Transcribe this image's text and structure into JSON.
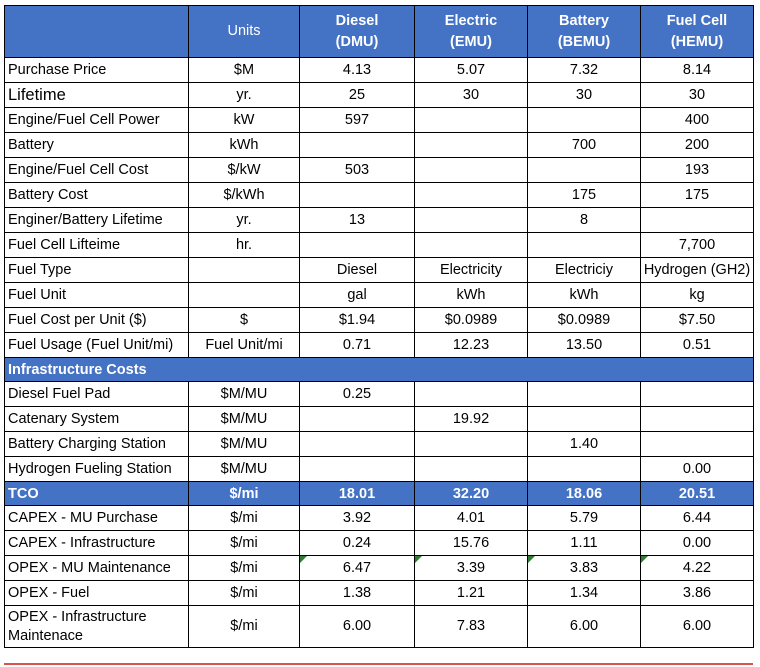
{
  "header": {
    "blank": "",
    "units": "Units",
    "cols": [
      {
        "line1": "Diesel",
        "line2": "(DMU)"
      },
      {
        "line1": "Electric",
        "line2": "(EMU)"
      },
      {
        "line1": "Battery",
        "line2": "(BEMU)"
      },
      {
        "line1": "Fuel Cell",
        "line2": "(HEMU)"
      }
    ]
  },
  "rows": [
    {
      "label": "Purchase Price",
      "unit": "$M",
      "v": [
        "4.13",
        "5.07",
        "7.32",
        "8.14"
      ]
    },
    {
      "label": "Lifetime",
      "unit": "yr.",
      "v": [
        "25",
        "30",
        "30",
        "30"
      ]
    },
    {
      "label": "Engine/Fuel Cell Power",
      "unit": "kW",
      "v": [
        "597",
        "",
        "",
        "400"
      ]
    },
    {
      "label": "Battery",
      "unit": "kWh",
      "v": [
        "",
        "",
        "700",
        "200"
      ]
    },
    {
      "label": "Engine/Fuel Cell Cost",
      "unit": "$/kW",
      "v": [
        "503",
        "",
        "",
        "193"
      ]
    },
    {
      "label": "Battery Cost",
      "unit": "$/kWh",
      "v": [
        "",
        "",
        "175",
        "175"
      ]
    },
    {
      "label": "Enginer/Battery Lifetime",
      "unit": "yr.",
      "v": [
        "13",
        "",
        "8",
        ""
      ]
    },
    {
      "label": "Fuel Cell Lifteime",
      "unit": "hr.",
      "v": [
        "",
        "",
        "",
        "7,700"
      ]
    },
    {
      "label": "Fuel Type",
      "unit": "",
      "v": [
        "Diesel",
        "Electricity",
        "Electriciy",
        "Hydrogen (GH2)"
      ]
    },
    {
      "label": "Fuel Unit",
      "unit": "",
      "v": [
        "gal",
        "kWh",
        "kWh",
        "kg"
      ]
    },
    {
      "label": "Fuel Cost per Unit ($)",
      "unit": "$",
      "v": [
        "$1.94",
        "$0.0989",
        "$0.0989",
        "$7.50"
      ]
    },
    {
      "label": "Fuel Usage (Fuel Unit/mi)",
      "unit": "Fuel Unit/mi",
      "v": [
        "0.71",
        "12.23",
        "13.50",
        "0.51"
      ]
    }
  ],
  "infra_title": "Infrastructure Costs",
  "infra": [
    {
      "label": "Diesel Fuel Pad",
      "unit": "$M/MU",
      "v": [
        "0.25",
        "",
        "",
        ""
      ]
    },
    {
      "label": "Catenary System",
      "unit": "$M/MU",
      "v": [
        "",
        "19.92",
        "",
        ""
      ]
    },
    {
      "label": "Battery Charging Station",
      "unit": "$M/MU",
      "v": [
        "",
        "",
        "1.40",
        ""
      ]
    },
    {
      "label": "Hydrogen Fueling Station",
      "unit": "$M/MU",
      "v": [
        "",
        "",
        "",
        "0.00"
      ]
    }
  ],
  "tco": {
    "label": "TCO",
    "unit": "$/mi",
    "v": [
      "18.01",
      "32.20",
      "18.06",
      "20.51"
    ]
  },
  "tco_rows": [
    {
      "label": "CAPEX - MU Purchase",
      "unit": "$/mi",
      "v": [
        "3.92",
        "4.01",
        "5.79",
        "6.44"
      ]
    },
    {
      "label": "CAPEX - Infrastructure",
      "unit": "$/mi",
      "v": [
        "0.24",
        "15.76",
        "1.11",
        "0.00"
      ]
    },
    {
      "label": "OPEX - MU Maintenance",
      "unit": "$/mi",
      "v": [
        "6.47",
        "3.39",
        "3.83",
        "4.22"
      ]
    },
    {
      "label": "OPEX - Fuel",
      "unit": "$/mi",
      "v": [
        "1.38",
        "1.21",
        "1.34",
        "3.86"
      ]
    },
    {
      "label_line1": "OPEX -  Infrastructure",
      "label_line2": "Maintenace",
      "unit": "$/mi",
      "v": [
        "6.00",
        "7.83",
        "6.00",
        "6.00"
      ]
    }
  ],
  "colors": {
    "header_blue": "#4472c4",
    "flag_green": "#2e7d32",
    "bottom_rule": "#d9534f"
  }
}
